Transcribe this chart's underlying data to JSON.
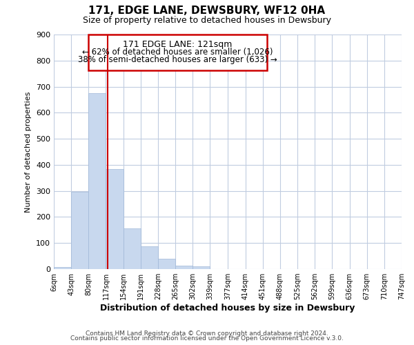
{
  "title": "171, EDGE LANE, DEWSBURY, WF12 0HA",
  "subtitle": "Size of property relative to detached houses in Dewsbury",
  "xlabel": "Distribution of detached houses by size in Dewsbury",
  "ylabel": "Number of detached properties",
  "bar_values": [
    8,
    297,
    676,
    385,
    155,
    88,
    40,
    14,
    10,
    0,
    0,
    0,
    0,
    0,
    0,
    0,
    0,
    0,
    0,
    0
  ],
  "bin_labels": [
    "6sqm",
    "43sqm",
    "80sqm",
    "117sqm",
    "154sqm",
    "191sqm",
    "228sqm",
    "265sqm",
    "302sqm",
    "339sqm",
    "377sqm",
    "414sqm",
    "451sqm",
    "488sqm",
    "525sqm",
    "562sqm",
    "599sqm",
    "636sqm",
    "673sqm",
    "710sqm",
    "747sqm"
  ],
  "bar_color": "#c8d8ee",
  "bar_edge_color": "#a0b8d8",
  "annotation_title": "171 EDGE LANE: 121sqm",
  "annotation_line1": "← 62% of detached houses are smaller (1,026)",
  "annotation_line2": "38% of semi-detached houses are larger (633) →",
  "annotation_box_color": "#ffffff",
  "annotation_box_edge": "#cc0000",
  "property_line_color": "#cc0000",
  "ylim": [
    0,
    900
  ],
  "yticks": [
    0,
    100,
    200,
    300,
    400,
    500,
    600,
    700,
    800,
    900
  ],
  "background_color": "#ffffff",
  "grid_color": "#c0cce0",
  "footer_line1": "Contains HM Land Registry data © Crown copyright and database right 2024.",
  "footer_line2": "Contains public sector information licensed under the Open Government Licence v.3.0."
}
